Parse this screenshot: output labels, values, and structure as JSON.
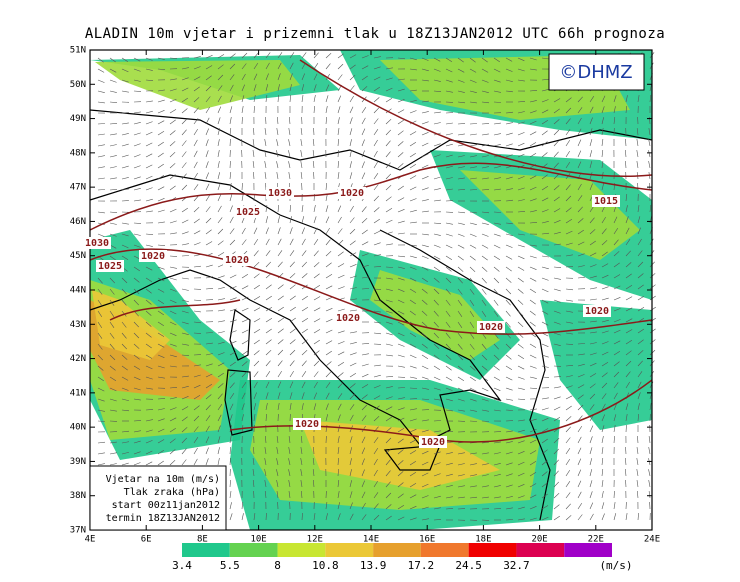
{
  "title": "ALADIN 10m vjetar i prizemni tlak u 18Z13JAN2012 UTC 66h prognoza",
  "credit": "©DHMZ",
  "lat_labels": [
    "37N",
    "38N",
    "39N",
    "40N",
    "41N",
    "42N",
    "43N",
    "44N",
    "45N",
    "46N",
    "47N",
    "48N",
    "49N",
    "50N",
    "51N"
  ],
  "lon_labels": [
    "4E",
    "6E",
    "8E",
    "10E",
    "12E",
    "14E",
    "16E",
    "18E",
    "20E",
    "22E",
    "24E"
  ],
  "isobar_labels": [
    1030,
    1025,
    1020,
    1030,
    1025,
    1020,
    1020,
    1020,
    1020,
    1020,
    1015,
    1020,
    1020
  ],
  "info_box": [
    "Vjetar na 10m (m/s)",
    "Tlak zraka (hPa)",
    "start 00z11jan2012",
    "termin 18Z13JAN2012"
  ],
  "colorbar": {
    "levels": [
      3.4,
      5.5,
      8,
      10.8,
      13.9,
      17.2,
      24.5,
      32.7
    ],
    "unit": "(m/s)"
  }
}
